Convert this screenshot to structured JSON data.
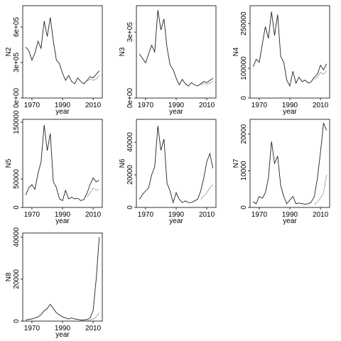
{
  "chart_data": [
    {
      "type": "line",
      "ylabel": "N2",
      "xlabel": "year",
      "x_ticks": [
        "1970",
        "1990",
        "2010"
      ],
      "y_ticks": [
        "0e+00",
        "3e+05",
        "6e+05"
      ],
      "ylim": [
        0,
        780000
      ],
      "x": [
        1966,
        1968,
        1970,
        1972,
        1974,
        1976,
        1978,
        1980,
        1982,
        1984,
        1986,
        1988,
        1990,
        1992,
        1994,
        1996,
        1998,
        2000,
        2002,
        2004,
        2006,
        2008,
        2010,
        2012,
        2014
      ],
      "series": [
        {
          "values": [
            430000,
            400000,
            320000,
            380000,
            480000,
            420000,
            650000,
            520000,
            680000,
            480000,
            320000,
            290000,
            210000,
            150000,
            190000,
            140000,
            120000,
            170000,
            140000,
            120000,
            150000,
            180000,
            170000,
            200000,
            230000
          ]
        },
        {
          "values": [
            null,
            null,
            null,
            null,
            null,
            null,
            null,
            null,
            null,
            null,
            null,
            null,
            null,
            null,
            null,
            null,
            null,
            null,
            null,
            null,
            140000,
            160000,
            150000,
            160000,
            190000
          ]
        }
      ]
    },
    {
      "type": "line",
      "ylabel": "N3",
      "xlabel": "year",
      "x_ticks": [
        "1970",
        "1990",
        "2010"
      ],
      "y_ticks": [
        "0e+00",
        "3e+05"
      ],
      "ylim": [
        0,
        420000
      ],
      "x": [
        1966,
        1968,
        1970,
        1972,
        1974,
        1976,
        1978,
        1980,
        1982,
        1984,
        1986,
        1988,
        1990,
        1992,
        1994,
        1996,
        1998,
        2000,
        2002,
        2004,
        2006,
        2008,
        2010,
        2012,
        2014
      ],
      "series": [
        {
          "values": [
            200000,
            180000,
            160000,
            200000,
            240000,
            210000,
            400000,
            310000,
            360000,
            230000,
            150000,
            130000,
            90000,
            60000,
            85000,
            65000,
            55000,
            70000,
            60000,
            55000,
            65000,
            75000,
            70000,
            80000,
            90000
          ]
        },
        {
          "values": [
            null,
            null,
            null,
            null,
            null,
            null,
            null,
            null,
            null,
            null,
            null,
            null,
            null,
            null,
            null,
            null,
            null,
            null,
            null,
            null,
            60000,
            66000,
            62000,
            68000,
            76000
          ]
        }
      ]
    },
    {
      "type": "line",
      "ylabel": "N4",
      "xlabel": "year",
      "x_ticks": [
        "1970",
        "1990",
        "2010"
      ],
      "y_ticks": [
        "0",
        "100000",
        "250000"
      ],
      "ylim": [
        0,
        310000
      ],
      "x": [
        1966,
        1968,
        1970,
        1972,
        1974,
        1976,
        1978,
        1980,
        1982,
        1984,
        1986,
        1988,
        1990,
        1992,
        1994,
        1996,
        1998,
        2000,
        2002,
        2004,
        2006,
        2008,
        2010,
        2012,
        2014
      ],
      "series": [
        {
          "values": [
            105000,
            130000,
            120000,
            180000,
            240000,
            200000,
            290000,
            210000,
            280000,
            140000,
            120000,
            60000,
            40000,
            90000,
            50000,
            70000,
            55000,
            60000,
            50000,
            55000,
            70000,
            80000,
            110000,
            95000,
            115000
          ]
        },
        {
          "values": [
            null,
            null,
            null,
            null,
            null,
            null,
            null,
            null,
            null,
            null,
            null,
            null,
            null,
            null,
            null,
            null,
            null,
            null,
            null,
            null,
            62000,
            70000,
            86000,
            80000,
            92000
          ]
        }
      ]
    },
    {
      "type": "line",
      "ylabel": "N5",
      "xlabel": "year",
      "x_ticks": [
        "1970",
        "1990",
        "2010"
      ],
      "y_ticks": [
        "0",
        "50000",
        "150000"
      ],
      "ylim": [
        0,
        155000
      ],
      "x": [
        1966,
        1968,
        1970,
        1972,
        1974,
        1976,
        1978,
        1980,
        1982,
        1984,
        1986,
        1988,
        1990,
        1992,
        1994,
        1996,
        1998,
        2000,
        2002,
        2004,
        2006,
        2008,
        2010,
        2012,
        2014
      ],
      "series": [
        {
          "values": [
            22000,
            35000,
            40000,
            32000,
            60000,
            80000,
            145000,
            100000,
            130000,
            45000,
            35000,
            15000,
            12000,
            30000,
            15000,
            18000,
            15000,
            16000,
            12000,
            14000,
            25000,
            40000,
            52000,
            45000,
            48000
          ]
        },
        {
          "values": [
            null,
            null,
            null,
            null,
            null,
            null,
            null,
            null,
            null,
            null,
            null,
            null,
            null,
            null,
            null,
            null,
            null,
            null,
            null,
            null,
            18000,
            26000,
            34000,
            30000,
            32000
          ]
        }
      ]
    },
    {
      "type": "line",
      "ylabel": "N6",
      "xlabel": "year",
      "x_ticks": [
        "1970",
        "1990",
        "2010"
      ],
      "y_ticks": [
        "0",
        "20000",
        "40000"
      ],
      "ylim": [
        0,
        54000
      ],
      "x": [
        1966,
        1968,
        1970,
        1972,
        1974,
        1976,
        1978,
        1980,
        1982,
        1984,
        1986,
        1988,
        1990,
        1992,
        1994,
        1996,
        1998,
        2000,
        2002,
        2004,
        2006,
        2008,
        2010,
        2012,
        2014
      ],
      "series": [
        {
          "values": [
            5000,
            8000,
            10000,
            12000,
            20000,
            25000,
            50000,
            35000,
            42000,
            15000,
            10000,
            3000,
            9000,
            5000,
            3000,
            4000,
            3000,
            3000,
            4000,
            5000,
            10000,
            18000,
            28000,
            33000,
            24000
          ]
        },
        {
          "values": [
            null,
            null,
            null,
            null,
            null,
            null,
            null,
            null,
            null,
            null,
            null,
            null,
            null,
            null,
            null,
            null,
            null,
            null,
            null,
            null,
            5000,
            7000,
            9000,
            12000,
            14000
          ]
        }
      ]
    },
    {
      "type": "line",
      "ylabel": "N7",
      "xlabel": "year",
      "x_ticks": [
        "1970",
        "1990",
        "2010"
      ],
      "y_ticks": [
        "0",
        "10000",
        "20000"
      ],
      "ylim": [
        0,
        24000
      ],
      "x": [
        1966,
        1968,
        1970,
        1972,
        1974,
        1976,
        1978,
        1980,
        1982,
        1984,
        1986,
        1988,
        1990,
        1992,
        1994,
        1996,
        1998,
        2000,
        2002,
        2004,
        2006,
        2008,
        2010,
        2012,
        2014
      ],
      "series": [
        {
          "values": [
            1500,
            1000,
            3000,
            2500,
            4000,
            8000,
            18000,
            12000,
            14000,
            6000,
            3000,
            1000,
            2000,
            3000,
            1000,
            1200,
            1000,
            900,
            1000,
            1500,
            3000,
            8000,
            15000,
            23000,
            21000
          ]
        },
        {
          "values": [
            null,
            null,
            null,
            null,
            null,
            null,
            null,
            null,
            null,
            null,
            null,
            null,
            null,
            null,
            null,
            null,
            null,
            null,
            null,
            null,
            800,
            1500,
            2500,
            4000,
            9000
          ]
        }
      ]
    },
    {
      "type": "line",
      "ylabel": "N8",
      "xlabel": "year",
      "x_ticks": [
        "1970",
        "1990",
        "2010"
      ],
      "y_ticks": [
        "0",
        "20000",
        "40000"
      ],
      "ylim": [
        0,
        42000
      ],
      "x": [
        1966,
        1968,
        1970,
        1972,
        1974,
        1976,
        1978,
        1980,
        1982,
        1984,
        1986,
        1988,
        1990,
        1992,
        1994,
        1996,
        1998,
        2000,
        2002,
        2004,
        2006,
        2008,
        2010,
        2012,
        2014
      ],
      "series": [
        {
          "values": [
            500,
            800,
            1000,
            1500,
            2000,
            3000,
            5000,
            6000,
            8000,
            6000,
            4000,
            3000,
            2000,
            1500,
            1000,
            1500,
            1000,
            800,
            500,
            500,
            800,
            1500,
            5000,
            20000,
            40000
          ]
        },
        {
          "values": [
            null,
            null,
            null,
            null,
            null,
            null,
            null,
            null,
            null,
            null,
            null,
            null,
            null,
            null,
            null,
            null,
            null,
            null,
            null,
            null,
            300,
            600,
            1000,
            2000,
            4000
          ]
        }
      ]
    }
  ]
}
